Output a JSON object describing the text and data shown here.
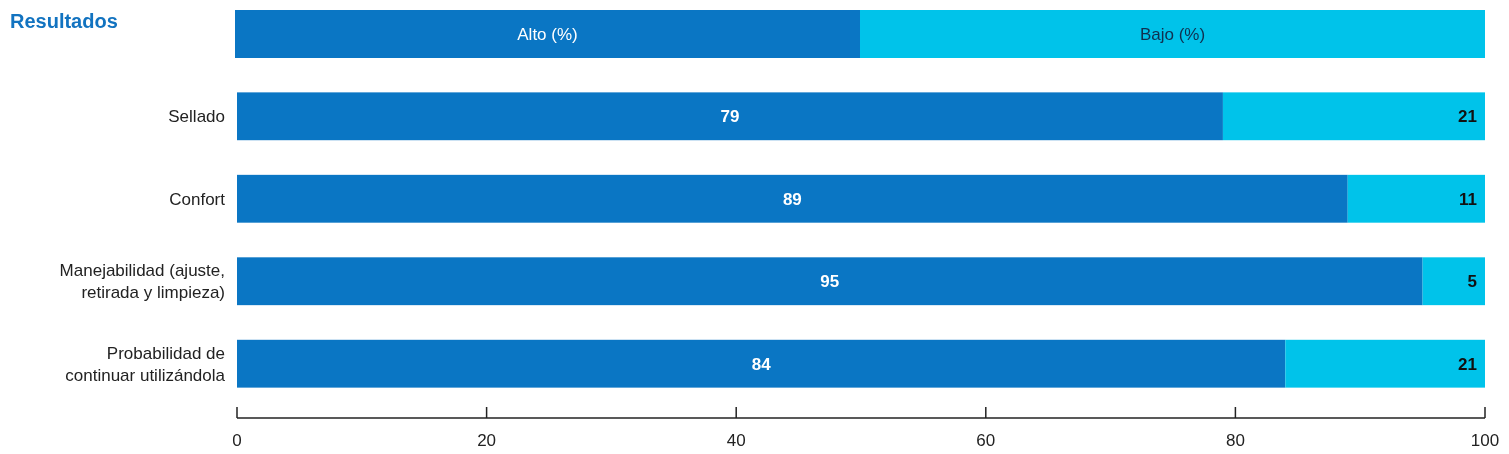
{
  "chart_data": {
    "type": "bar",
    "orientation": "horizontal",
    "stacked": true,
    "title": "Resultados",
    "categories": [
      "Sellado",
      "Confort",
      "Manejabilidad (ajuste, retirada y limpieza)",
      "Probabilidad de continuar utilizándola"
    ],
    "series": [
      {
        "name": "Alto (%)",
        "color": "#0a76c4",
        "values": [
          79,
          89,
          95,
          84
        ],
        "value_labels": [
          "79",
          "89",
          "95",
          "84"
        ]
      },
      {
        "name": "Bajo (%)",
        "color": "#00c3ea",
        "values": [
          21,
          11,
          5,
          16
        ],
        "value_labels": [
          "21",
          "11",
          "5",
          null
        ]
      }
    ],
    "annotations": [
      {
        "text": "21",
        "x": 100,
        "y": "Probabilidad de continuar utilizándola"
      }
    ],
    "xlim": [
      0,
      100
    ],
    "xticks": [
      0,
      20,
      40,
      60,
      80,
      100
    ],
    "grid": false,
    "legend": "top"
  }
}
